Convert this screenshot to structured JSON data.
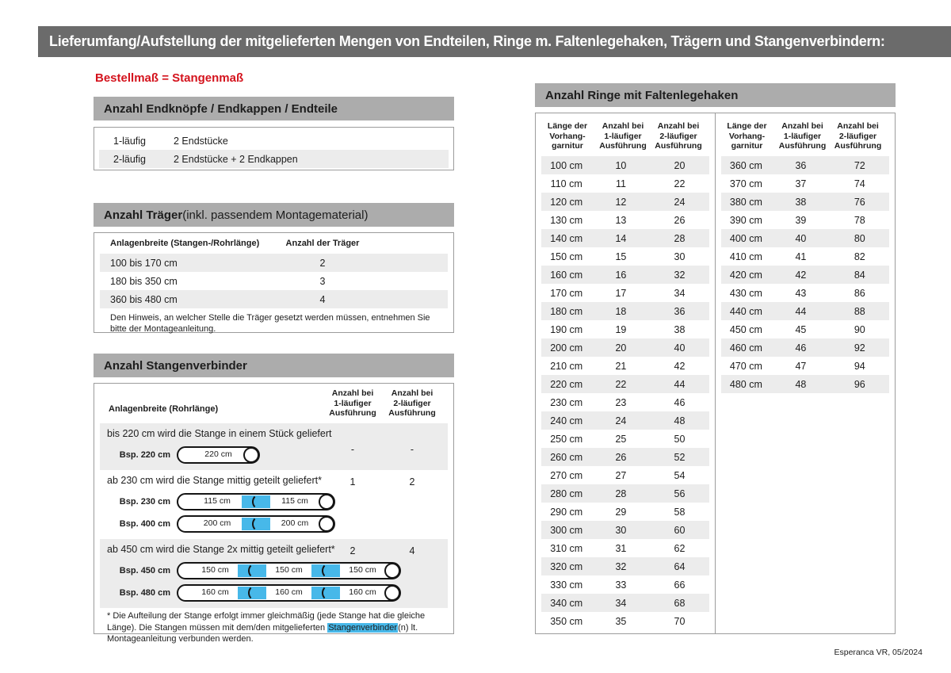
{
  "page": {
    "title": "Lieferumfang/Aufstellung der mitgelieferten Mengen von Endteilen, Ringe m. Faltenlegehaken, Trägern und Stangenverbindern:",
    "subtitle": "Bestellmaß = Stangenmaß",
    "footer": "Esperanca VR, 05/2024"
  },
  "colors": {
    "header_bar": "#6b6b6b",
    "section_bar": "#acacac",
    "row_stripe": "#ececec",
    "box_border": "#9c9c9c",
    "accent_red": "#d4131d",
    "connector_blue": "#47b8e9",
    "text": "#1d1d1d"
  },
  "endteile": {
    "header": "Anzahl Endknöpfe / Endkappen / Endteile",
    "rows": [
      {
        "label": "1-läufig",
        "value": "2 Endstücke"
      },
      {
        "label": "2-läufig",
        "value": "2 Endstücke + 2 Endkappen"
      }
    ]
  },
  "traeger": {
    "header_bold": "Anzahl Träger",
    "header_rest": " (inkl. passendem Montagematerial)",
    "col1": "Anlagenbreite (Stangen-/Rohrlänge)",
    "col2": "Anzahl der Träger",
    "rows": [
      {
        "range": "100 bis 170 cm",
        "count": "2"
      },
      {
        "range": "180 bis 350 cm",
        "count": "3"
      },
      {
        "range": "360 bis 480 cm",
        "count": "4"
      }
    ],
    "note": "Den Hinweis, an welcher Stelle die Träger gesetzt werden müssen, entnehmen Sie bitte der Montageanleitung."
  },
  "verbinder": {
    "header": "Anzahl Stangenverbinder",
    "col1": "Anlagenbreite (Rohrlänge)",
    "col2": "Anzahl bei\n1-läufiger\nAusführung",
    "col3": "Anzahl bei\n2-läufiger\nAusführung",
    "groups": [
      {
        "text": "bis 220 cm wird die Stange in einem Stück geliefert",
        "count1": "-",
        "count2": "-",
        "rods": [
          {
            "label": "Bsp. 220 cm",
            "segments": [
              "220 cm"
            ]
          }
        ]
      },
      {
        "text": "ab 230 cm wird die Stange mittig geteilt geliefert*",
        "count1": "1",
        "count2": "2",
        "rods": [
          {
            "label": "Bsp. 230 cm",
            "segments": [
              "115 cm",
              "115 cm"
            ]
          },
          {
            "label": "Bsp. 400 cm",
            "segments": [
              "200 cm",
              "200 cm"
            ]
          }
        ]
      },
      {
        "text": "ab 450 cm wird die Stange 2x mittig geteilt geliefert*",
        "count1": "2",
        "count2": "4",
        "rods": [
          {
            "label": "Bsp. 450 cm",
            "segments": [
              "150 cm",
              "150 cm",
              "150 cm"
            ]
          },
          {
            "label": "Bsp. 480 cm",
            "segments": [
              "160 cm",
              "160 cm",
              "160 cm"
            ]
          }
        ]
      }
    ],
    "footnote_pre": "* Die Aufteilung der Stange erfolgt immer gleichmäßig (jede Stange hat die gleiche Länge). Die Stangen müssen mit dem/den mitgelieferten ",
    "footnote_highlight": "Stangenverbinder",
    "footnote_post": "(n) lt. Montageanleitung verbunden werden."
  },
  "ringe": {
    "header": "Anzahl Ringe mit Faltenlegehaken",
    "col1": "Länge der\nVorhang-\ngarnitur",
    "col2": "Anzahl bei\n1-läufiger\nAusführung",
    "col3": "Anzahl bei\n2-läufiger\nAusführung",
    "table1": [
      [
        "100 cm",
        "10",
        "20"
      ],
      [
        "110 cm",
        "11",
        "22"
      ],
      [
        "120 cm",
        "12",
        "24"
      ],
      [
        "130 cm",
        "13",
        "26"
      ],
      [
        "140 cm",
        "14",
        "28"
      ],
      [
        "150 cm",
        "15",
        "30"
      ],
      [
        "160 cm",
        "16",
        "32"
      ],
      [
        "170 cm",
        "17",
        "34"
      ],
      [
        "180 cm",
        "18",
        "36"
      ],
      [
        "190 cm",
        "19",
        "38"
      ],
      [
        "200 cm",
        "20",
        "40"
      ],
      [
        "210 cm",
        "21",
        "42"
      ],
      [
        "220 cm",
        "22",
        "44"
      ],
      [
        "230 cm",
        "23",
        "46"
      ],
      [
        "240 cm",
        "24",
        "48"
      ],
      [
        "250 cm",
        "25",
        "50"
      ],
      [
        "260 cm",
        "26",
        "52"
      ],
      [
        "270 cm",
        "27",
        "54"
      ],
      [
        "280 cm",
        "28",
        "56"
      ],
      [
        "290 cm",
        "29",
        "58"
      ],
      [
        "300 cm",
        "30",
        "60"
      ],
      [
        "310 cm",
        "31",
        "62"
      ],
      [
        "320 cm",
        "32",
        "64"
      ],
      [
        "330 cm",
        "33",
        "66"
      ],
      [
        "340 cm",
        "34",
        "68"
      ],
      [
        "350 cm",
        "35",
        "70"
      ]
    ],
    "table2": [
      [
        "360 cm",
        "36",
        "72"
      ],
      [
        "370 cm",
        "37",
        "74"
      ],
      [
        "380 cm",
        "38",
        "76"
      ],
      [
        "390 cm",
        "39",
        "78"
      ],
      [
        "400 cm",
        "40",
        "80"
      ],
      [
        "410 cm",
        "41",
        "82"
      ],
      [
        "420 cm",
        "42",
        "84"
      ],
      [
        "430 cm",
        "43",
        "86"
      ],
      [
        "440 cm",
        "44",
        "88"
      ],
      [
        "450 cm",
        "45",
        "90"
      ],
      [
        "460 cm",
        "46",
        "92"
      ],
      [
        "470 cm",
        "47",
        "94"
      ],
      [
        "480 cm",
        "48",
        "96"
      ]
    ]
  }
}
